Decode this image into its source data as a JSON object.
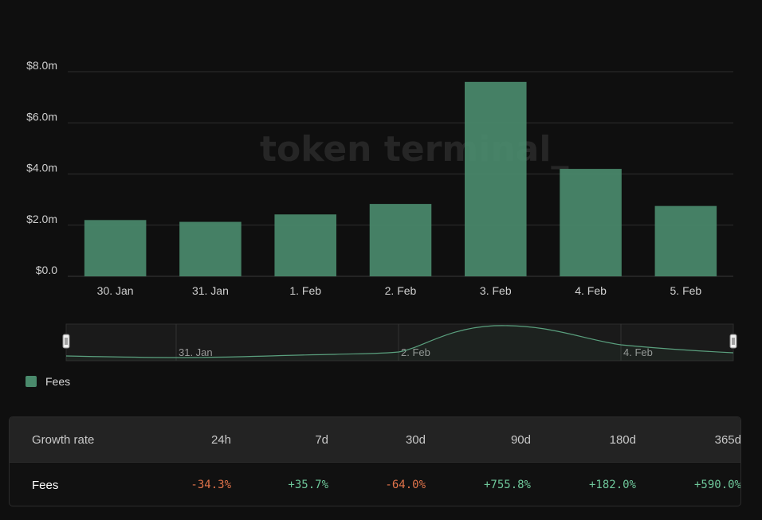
{
  "chart_data": {
    "type": "bar",
    "categories": [
      "30. Jan",
      "31. Jan",
      "1. Feb",
      "2. Feb",
      "3. Feb",
      "4. Feb",
      "5. Feb"
    ],
    "series": [
      {
        "name": "Fees",
        "values": [
          2.2,
          2.13,
          2.42,
          2.83,
          7.6,
          4.2,
          2.75
        ],
        "color": "#4a8a6c"
      }
    ],
    "unit": "m",
    "yticks": [
      "$0.0",
      "$2.0m",
      "$4.0m",
      "$6.0m",
      "$8.0m"
    ],
    "ylim": [
      0,
      8
    ],
    "grid": true,
    "watermark": "token terminal_",
    "navigator": {
      "labels": [
        "31. Jan",
        "2. Feb",
        "4. Feb"
      ]
    },
    "legend_position": "bottom-left"
  },
  "legend": {
    "label": "Fees",
    "color": "#4a8a6c"
  },
  "growth_table": {
    "headers": [
      "Growth rate",
      "24h",
      "7d",
      "30d",
      "90d",
      "180d",
      "365d"
    ],
    "rows": [
      {
        "label": "Fees",
        "values": [
          "-34.3%",
          "+35.7%",
          "-64.0%",
          "+755.8%",
          "+182.0%",
          "+590.0%"
        ],
        "colors": [
          "#e0734a",
          "#6ec79a",
          "#e0734a",
          "#6ec79a",
          "#6ec79a",
          "#6ec79a"
        ]
      }
    ]
  }
}
